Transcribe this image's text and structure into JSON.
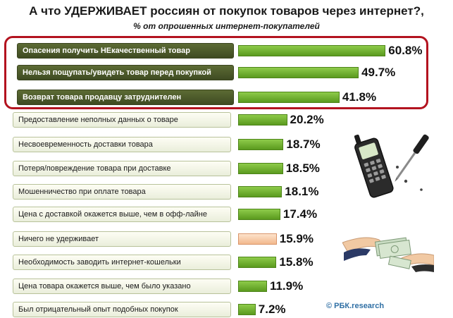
{
  "chart_data": {
    "type": "bar",
    "orientation": "horizontal",
    "title": "А что УДЕРЖИВАЕТ россиян от покупок товаров через интернет?,",
    "subtitle": "% от опрошенных интернет-покупателей",
    "categories": [
      "Опасения получить НЕкачественный товар",
      "Нельзя пощупать/увидеть товар перед покупкой",
      "Возврат товара продавцу затруднителен",
      "Предоставление неполных данных о товаре",
      "Несвоевременность доставки товара",
      "Потеря/повреждение товара при доставке",
      "Мошенничество при оплате товара",
      "Цена с доставкой окажется выше, чем в офф-лайне",
      "Ничего не удерживает",
      "Необходимость заводить интернет-кошельки",
      "Цена товара окажется выше, чем было указано",
      "Был отрицательный опыт подобных покупок"
    ],
    "values": [
      60.8,
      49.7,
      41.8,
      20.2,
      18.7,
      18.5,
      18.1,
      17.4,
      15.9,
      15.8,
      11.9,
      7.2
    ],
    "value_labels": [
      "60.8%",
      "49.7%",
      "41.8%",
      "20.2%",
      "18.7%",
      "18.5%",
      "18.1%",
      "17.4%",
      "15.9%",
      "15.8%",
      "11.9%",
      "7.2%"
    ],
    "highlighted": [
      true,
      true,
      true,
      false,
      false,
      false,
      false,
      false,
      false,
      false,
      false,
      false
    ],
    "bar_colors": [
      "#6bb02a",
      "#6bb02a",
      "#6bb02a",
      "#6bb02a",
      "#6bb02a",
      "#6bb02a",
      "#6bb02a",
      "#6bb02a",
      "#f5c4a0",
      "#6bb02a",
      "#6bb02a",
      "#6bb02a"
    ],
    "highlight_border_color": "#b3131f",
    "highlight_label_color": "#4a5728",
    "xlim": [
      0,
      61
    ],
    "grid": false,
    "legend": "none"
  },
  "credit": "© РБК.research",
  "illustrations": [
    "phone-and-screwdriver-icon",
    "money-hands-icon"
  ]
}
